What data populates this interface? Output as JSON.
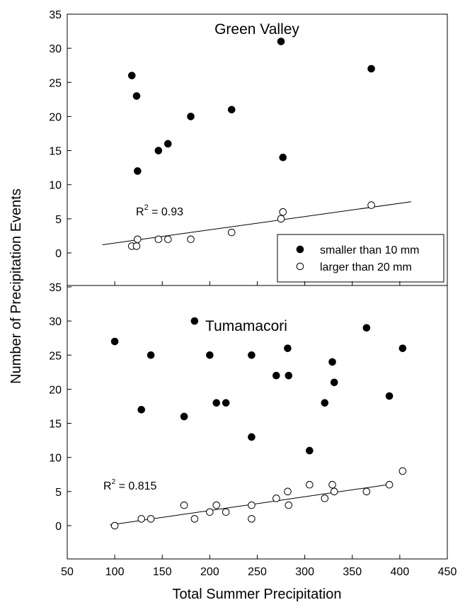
{
  "chart_data": {
    "type": "scatter",
    "xlabel": "Total Summer Precipitation",
    "ylabel": "Number of Precipitation Events",
    "xlim": [
      50,
      450
    ],
    "xticks": [
      50,
      100,
      150,
      200,
      250,
      300,
      350,
      400,
      450
    ],
    "legend": {
      "placement": "bottom-right of top panel",
      "entries": [
        {
          "label": "smaller than 10 mm",
          "marker": "filled-circle"
        },
        {
          "label": "larger than 20 mm",
          "marker": "open-circle"
        }
      ]
    },
    "panels": [
      {
        "title": "Green Valley",
        "ylim": [
          -3,
          35
        ],
        "yticks": [
          0,
          5,
          10,
          15,
          20,
          25,
          30,
          35
        ],
        "r2_prefix": "R",
        "r2_sup": "2",
        "r2_suffix": " = 0.93",
        "series": [
          {
            "name": "smaller than 10 mm",
            "marker": "filled",
            "points": [
              [
                118,
                26
              ],
              [
                123,
                23
              ],
              [
                124,
                12
              ],
              [
                146,
                15
              ],
              [
                156,
                16
              ],
              [
                180,
                20
              ],
              [
                223,
                21
              ],
              [
                275,
                31
              ],
              [
                277,
                14
              ],
              [
                370,
                27
              ]
            ]
          },
          {
            "name": "larger than 20 mm",
            "marker": "open",
            "points": [
              [
                118,
                1
              ],
              [
                123,
                1
              ],
              [
                124,
                2
              ],
              [
                146,
                2
              ],
              [
                156,
                2
              ],
              [
                180,
                2
              ],
              [
                223,
                3
              ],
              [
                275,
                5
              ],
              [
                277,
                6
              ],
              [
                370,
                7
              ]
            ]
          }
        ],
        "trendline": {
          "x": [
            87,
            412
          ],
          "y": [
            1.2,
            7.5
          ]
        }
      },
      {
        "title": "Tumamacori",
        "ylim": [
          -5,
          35
        ],
        "yticks": [
          0,
          5,
          10,
          15,
          20,
          25,
          30,
          35
        ],
        "r2_prefix": "R",
        "r2_sup": "2",
        "r2_suffix": " = 0.815",
        "series": [
          {
            "name": "smaller than 10 mm",
            "marker": "filled",
            "points": [
              [
                100,
                27
              ],
              [
                128,
                17
              ],
              [
                138,
                25
              ],
              [
                173,
                16
              ],
              [
                184,
                30
              ],
              [
                200,
                25
              ],
              [
                207,
                18
              ],
              [
                217,
                18
              ],
              [
                244,
                25
              ],
              [
                244,
                13
              ],
              [
                270,
                22
              ],
              [
                282,
                26
              ],
              [
                283,
                22
              ],
              [
                305,
                11
              ],
              [
                321,
                18
              ],
              [
                329,
                24
              ],
              [
                331,
                21
              ],
              [
                365,
                29
              ],
              [
                389,
                19
              ],
              [
                403,
                26
              ]
            ]
          },
          {
            "name": "larger than 20 mm",
            "marker": "open",
            "points": [
              [
                100,
                0
              ],
              [
                128,
                1
              ],
              [
                138,
                1
              ],
              [
                173,
                3
              ],
              [
                184,
                1
              ],
              [
                200,
                2
              ],
              [
                207,
                3
              ],
              [
                217,
                2
              ],
              [
                244,
                3
              ],
              [
                244,
                1
              ],
              [
                270,
                4
              ],
              [
                282,
                5
              ],
              [
                283,
                3
              ],
              [
                305,
                6
              ],
              [
                321,
                4
              ],
              [
                329,
                6
              ],
              [
                331,
                5
              ],
              [
                365,
                5
              ],
              [
                389,
                6
              ],
              [
                403,
                8
              ]
            ]
          }
        ],
        "trendline": {
          "x": [
            95,
            392
          ],
          "y": [
            0.1,
            6.1
          ]
        }
      }
    ]
  }
}
